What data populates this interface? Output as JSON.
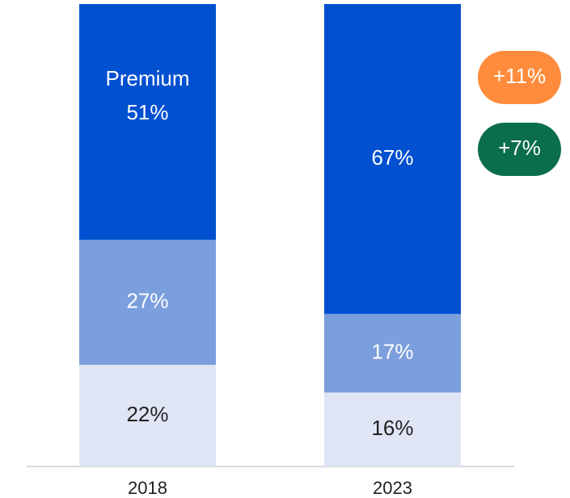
{
  "chart_data": {
    "type": "stacked_bar",
    "categories": [
      "2018",
      "2023"
    ],
    "series": [
      {
        "color": "#dfe5f5",
        "values": [
          22,
          16
        ],
        "value_labels": [
          "22%",
          "16%"
        ]
      },
      {
        "color": "#7b9edc",
        "values": [
          27,
          17
        ],
        "value_labels": [
          "27%",
          "17%"
        ]
      },
      {
        "name": "Premium",
        "color": "#0050d0",
        "values": [
          51,
          67
        ],
        "value_labels": [
          "51%",
          "67%"
        ]
      }
    ],
    "ylim": [
      0,
      100
    ],
    "annotations": [
      {
        "text": "+11%",
        "color": "#ff8c3c"
      },
      {
        "text": "+7%",
        "color": "#0b6e4a"
      }
    ]
  }
}
